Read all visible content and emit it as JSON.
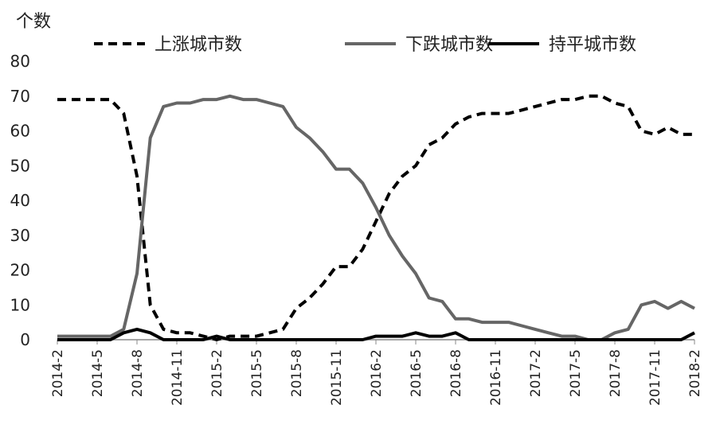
{
  "chart_data": {
    "type": "line",
    "ylabel": "个数",
    "xlabel": "",
    "ylim": [
      0,
      80
    ],
    "yticks": [
      0,
      10,
      20,
      30,
      40,
      50,
      60,
      70,
      80
    ],
    "grid": false,
    "legend_position": "top",
    "x": [
      "2014-2",
      "2014-3",
      "2014-4",
      "2014-5",
      "2014-6",
      "2014-7",
      "2014-8",
      "2014-9",
      "2014-10",
      "2014-11",
      "2014-12",
      "2015-1",
      "2015-2",
      "2015-3",
      "2015-4",
      "2015-5",
      "2015-6",
      "2015-7",
      "2015-8",
      "2015-9",
      "2015-10",
      "2015-11",
      "2015-12",
      "2016-1",
      "2016-2",
      "2016-3",
      "2016-4",
      "2016-5",
      "2016-6",
      "2016-7",
      "2016-8",
      "2016-9",
      "2016-10",
      "2016-11",
      "2016-12",
      "2017-1",
      "2017-2",
      "2017-3",
      "2017-4",
      "2017-5",
      "2017-6",
      "2017-7",
      "2017-8",
      "2017-9",
      "2017-10",
      "2017-11",
      "2017-12",
      "2018-1",
      "2018-2"
    ],
    "x_tick_labels": [
      "2014-2",
      "2014-5",
      "2014-8",
      "2014-11",
      "2015-2",
      "2015-5",
      "2015-8",
      "2015-11",
      "2016-2",
      "2016-5",
      "2016-8",
      "2016-11",
      "2017-2",
      "2017-5",
      "2017-8",
      "2017-11",
      "2018-2"
    ],
    "series": [
      {
        "name": "上涨城市数",
        "style": "dashed",
        "color": "#000000",
        "values": [
          69,
          69,
          69,
          69,
          69,
          65,
          47,
          10,
          3,
          2,
          2,
          1,
          0,
          1,
          1,
          1,
          2,
          3,
          9,
          12,
          16,
          21,
          21,
          26,
          34,
          42,
          47,
          50,
          56,
          58,
          62,
          64,
          65,
          65,
          65,
          66,
          67,
          68,
          69,
          69,
          70,
          70,
          68,
          67,
          60,
          59,
          61,
          59,
          59
        ]
      },
      {
        "name": "下跌城市数",
        "style": "solid",
        "color": "#666666",
        "values": [
          1,
          1,
          1,
          1,
          1,
          3,
          19,
          58,
          67,
          68,
          68,
          69,
          69,
          70,
          69,
          69,
          68,
          67,
          61,
          58,
          54,
          49,
          49,
          45,
          38,
          30,
          24,
          19,
          12,
          11,
          6,
          6,
          5,
          5,
          5,
          4,
          3,
          2,
          1,
          1,
          0,
          0,
          2,
          3,
          10,
          11,
          9,
          11,
          9
        ]
      },
      {
        "name": "持平城市数",
        "style": "solid",
        "color": "#000000",
        "values": [
          0,
          0,
          0,
          0,
          0,
          2,
          3,
          2,
          0,
          0,
          0,
          0,
          1,
          0,
          0,
          0,
          0,
          0,
          0,
          0,
          0,
          0,
          0,
          0,
          1,
          1,
          1,
          2,
          1,
          1,
          2,
          0,
          0,
          0,
          0,
          0,
          0,
          0,
          0,
          0,
          0,
          0,
          0,
          0,
          0,
          0,
          0,
          0,
          2
        ]
      }
    ]
  }
}
